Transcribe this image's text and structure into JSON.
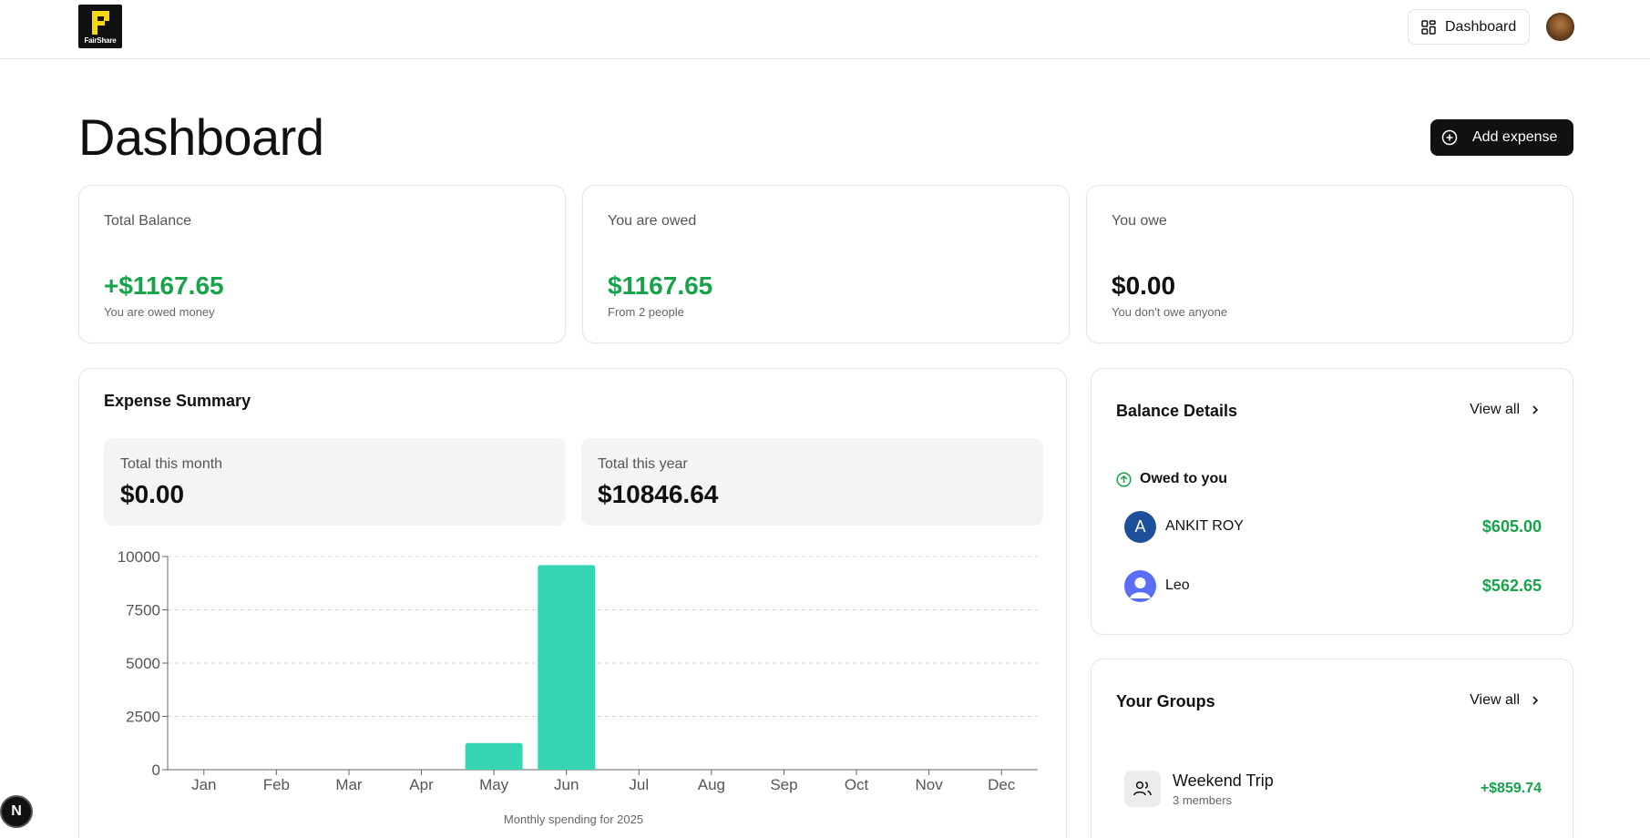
{
  "header": {
    "logo_text": "FairShare",
    "logo_letter": "F",
    "nav_dashboard_label": "Dashboard",
    "nav_icon": "layout-grid-icon",
    "avatar_icon": "user-avatar"
  },
  "page": {
    "title": "Dashboard",
    "add_expense_label": "Add expense",
    "add_expense_icon": "plus-circle-icon"
  },
  "stats": [
    {
      "label": "Total Balance",
      "value": "+$1167.65",
      "sub": "You are owed money",
      "color": "#16a34a"
    },
    {
      "label": "You are owed",
      "value": "$1167.65",
      "sub": "From 2 people",
      "color": "#16a34a"
    },
    {
      "label": "You owe",
      "value": "$0.00",
      "sub": "You don't owe anyone",
      "color": "#111111"
    }
  ],
  "summary": {
    "title": "Expense Summary",
    "month_label": "Total this month",
    "month_value": "$0.00",
    "year_label": "Total this year",
    "year_value": "$10846.64",
    "caption": "Monthly spending for 2025"
  },
  "chart_data": {
    "type": "bar",
    "categories": [
      "Jan",
      "Feb",
      "Mar",
      "Apr",
      "May",
      "Jun",
      "Jul",
      "Aug",
      "Sep",
      "Oct",
      "Nov",
      "Dec"
    ],
    "values": [
      0,
      0,
      0,
      0,
      1250,
      9600,
      0,
      0,
      0,
      0,
      0,
      0
    ],
    "yticks": [
      0,
      2500,
      5000,
      7500,
      10000
    ],
    "ylim": [
      0,
      10000
    ],
    "bar_color": "#34d6b4",
    "grid": true,
    "title": "",
    "xlabel": "",
    "ylabel": ""
  },
  "balance_details": {
    "title": "Balance Details",
    "view_all_label": "View all",
    "section_label": "Owed to you",
    "section_icon": "arrow-up-circle-icon",
    "people": [
      {
        "initial": "A",
        "name": "ANKIT ROY",
        "amount": "$605.00",
        "avatar_color": "#1e4f9a"
      },
      {
        "initial": "",
        "name": "Leo",
        "amount": "$562.65",
        "avatar_color": "#5b6cf6"
      }
    ]
  },
  "groups": {
    "title": "Your Groups",
    "view_all_label": "View all",
    "items": [
      {
        "name": "Weekend Trip",
        "members": "3 members",
        "amount": "+$859.74",
        "icon": "users-icon"
      }
    ]
  },
  "dev_badge": {
    "label": "N"
  }
}
